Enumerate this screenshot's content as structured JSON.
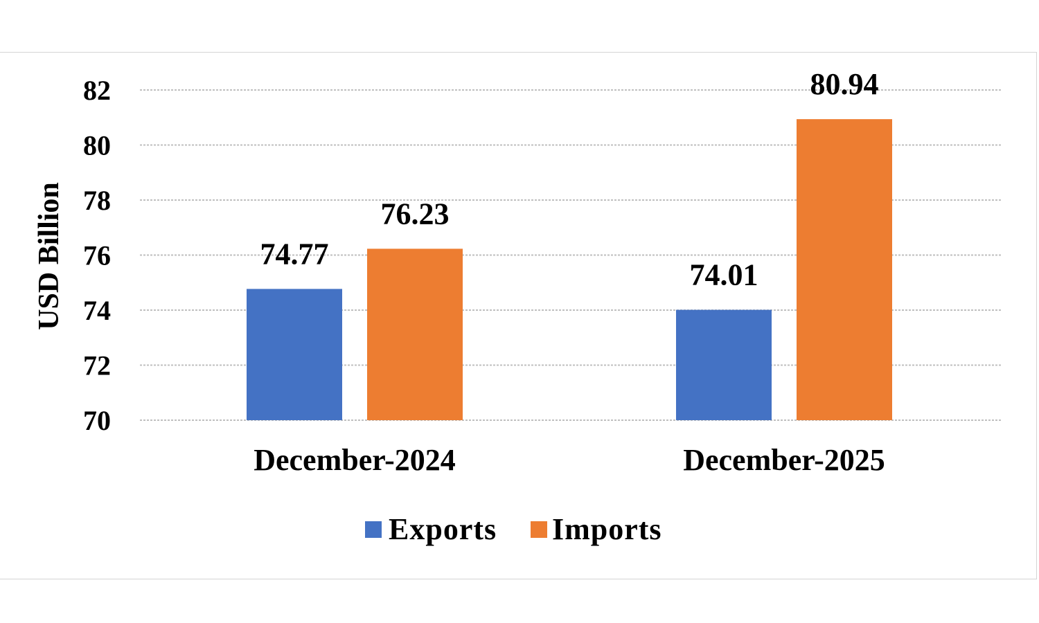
{
  "chart_data": {
    "type": "bar",
    "categories": [
      "December-2024",
      "December-2025"
    ],
    "series": [
      {
        "name": "Exports",
        "values": [
          74.77,
          74.01
        ],
        "color": "#4472c4"
      },
      {
        "name": "Imports",
        "values": [
          76.23,
          80.94
        ],
        "color": "#ed7d31"
      }
    ],
    "data_labels": [
      [
        "74.77",
        "74.01"
      ],
      [
        "76.23",
        "80.94"
      ]
    ],
    "ylabel": "USD Billion",
    "xlabel": "",
    "ylim": [
      70,
      82
    ],
    "yticks": [
      70,
      72,
      74,
      76,
      78,
      80,
      82
    ],
    "grid": true,
    "legend_position": "bottom"
  }
}
